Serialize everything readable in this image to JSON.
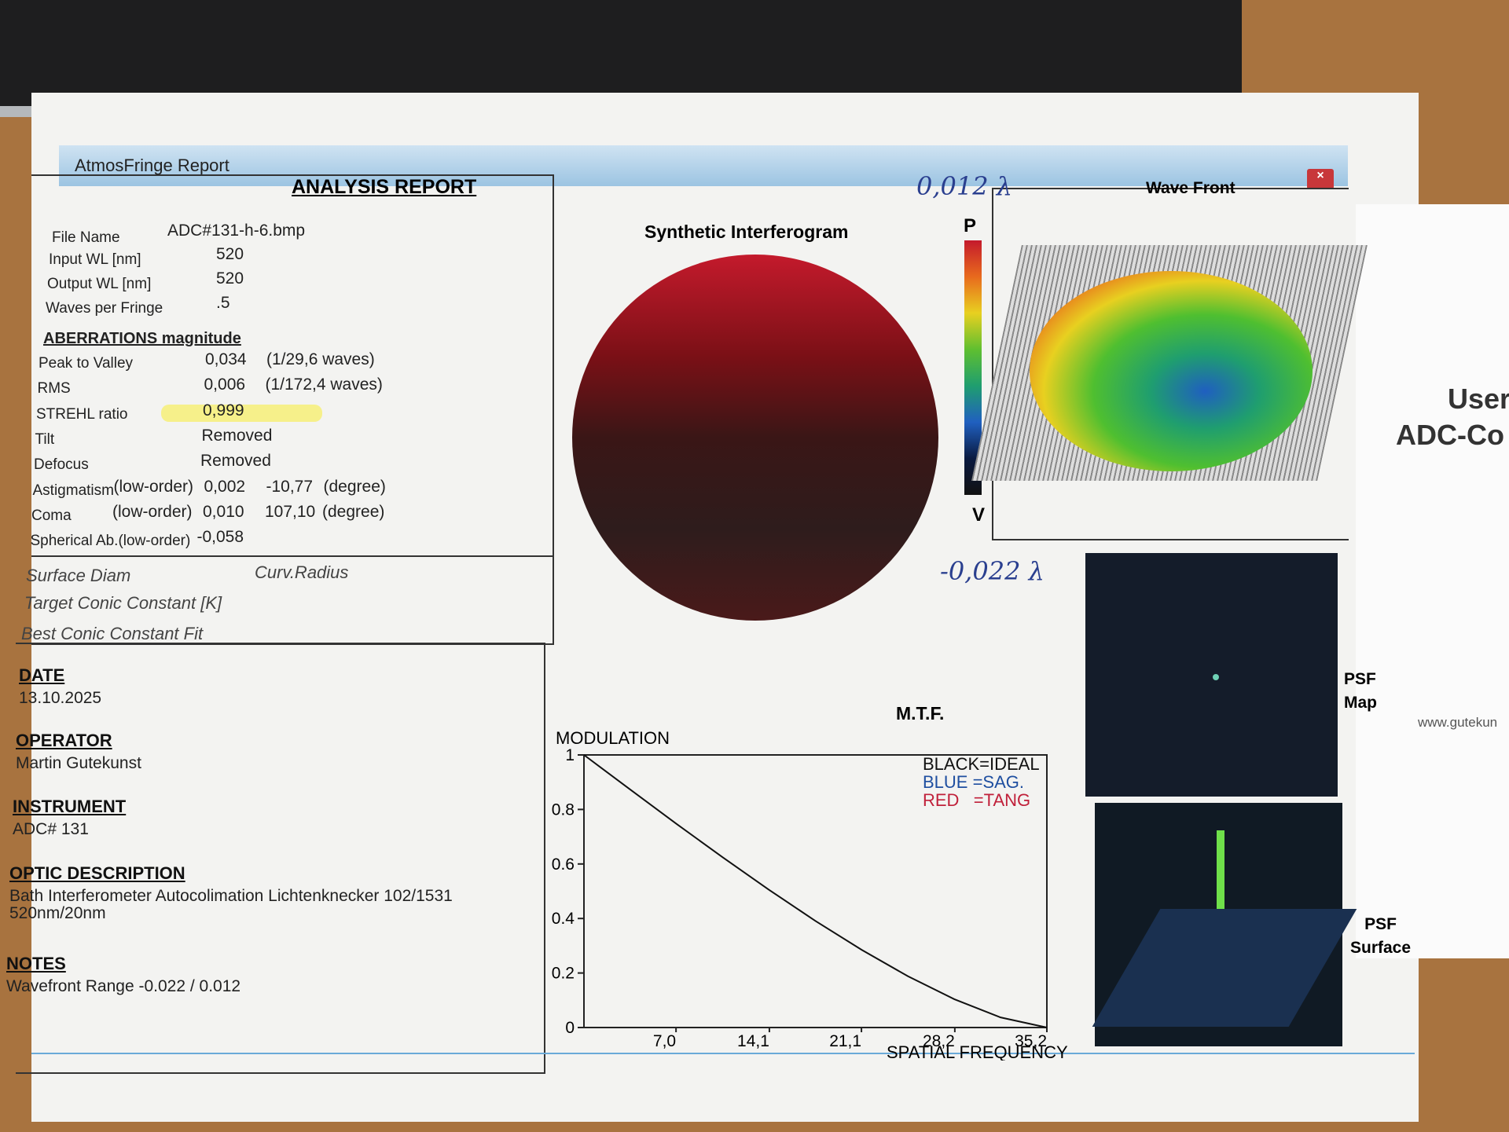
{
  "window_title": "AtmosFringe Report",
  "report": {
    "title": "ANALYSIS REPORT",
    "file": {
      "label": "File Name",
      "value": "ADC#131-h-6.bmp"
    },
    "params": [
      [
        "Input  WL [nm]",
        "520"
      ],
      [
        "Output WL [nm]",
        "520"
      ],
      [
        "Waves per Fringe",
        ".5"
      ]
    ],
    "aberrations": {
      "heading": "ABERRATIONS magnitude",
      "rows": [
        [
          "Peak to Valley",
          "0,034",
          "(1/29,6 waves)"
        ],
        [
          "RMS",
          "0,006",
          "(1/172,4 waves)"
        ],
        [
          "STREHL ratio",
          "0,999"
        ],
        [
          "Tilt",
          "Removed"
        ],
        [
          "Defocus",
          "Removed"
        ],
        [
          "Astigmatism",
          "(low-order)",
          "0,002",
          "-10,77",
          "(degree)"
        ],
        [
          "Coma",
          "(low-order)",
          "0,010",
          "107,10",
          "(degree)"
        ],
        [
          "Spherical Ab.(low-order)",
          "-0,058"
        ]
      ]
    },
    "surface": [
      "Surface Diam",
      "Curv.Radius",
      "Target Conic Constant [K]",
      "Best Conic Constant Fit"
    ],
    "info": [
      {
        "heading": "DATE",
        "lines": [
          "13.10.2025"
        ]
      },
      {
        "heading": "OPERATOR",
        "lines": [
          "Martin Gutekunst"
        ]
      },
      {
        "heading": "INSTRUMENT",
        "lines": [
          "ADC# 131"
        ]
      },
      {
        "heading": "OPTIC DESCRIPTION",
        "lines": [
          "Bath Interferometer Autocolimation Lichtenknecker 102/1531",
          "520nm/20nm"
        ]
      },
      {
        "heading": "NOTES",
        "lines": [
          "Wavefront Range -0.022 / 0.012"
        ]
      }
    ]
  },
  "interferogram": {
    "title": "Synthetic Interferogram"
  },
  "wavefront": {
    "title": "Wave Front",
    "top": "P",
    "bottom": "V"
  },
  "handwritten": [
    "0,012 λ",
    "-0,022 λ"
  ],
  "psf": [
    [
      "PSF",
      "Map"
    ],
    [
      "PSF",
      "Surface"
    ]
  ],
  "mtf": {
    "title": "M.T.F.",
    "ylabel": "MODULATION",
    "xlabel": "SPATIAL FREQUENCY",
    "legend": [
      {
        "text": "BLACK=IDEAL",
        "color": "#111111"
      },
      {
        "text": "BLUE =SAG.",
        "color": "#1f4fa0"
      },
      {
        "text": "RED   =TANG",
        "color": "#c0203a"
      }
    ],
    "xlim": [
      0,
      35.2
    ],
    "ylim": [
      0,
      1
    ],
    "xticks": [
      {
        "value": 7.0,
        "label": "7,0"
      },
      {
        "value": 14.1,
        "label": "14,1"
      },
      {
        "value": 21.1,
        "label": "21,1"
      },
      {
        "value": 28.2,
        "label": "28,2"
      },
      {
        "value": 35.2,
        "label": "35,2"
      }
    ],
    "yticks": [
      0,
      0.2,
      0.4,
      0.6,
      0.8,
      1
    ],
    "x": [
      0,
      3.52,
      7.04,
      10.56,
      14.08,
      17.6,
      21.12,
      24.64,
      28.16,
      31.68,
      35.2
    ],
    "series": [
      {
        "color": "#111111",
        "values": [
          1,
          0.873,
          0.747,
          0.624,
          0.505,
          0.391,
          0.285,
          0.188,
          0.104,
          0.037,
          0
        ]
      }
    ]
  },
  "side_sheet": [
    "User",
    "ADC-Co",
    "www.gutekun"
  ]
}
